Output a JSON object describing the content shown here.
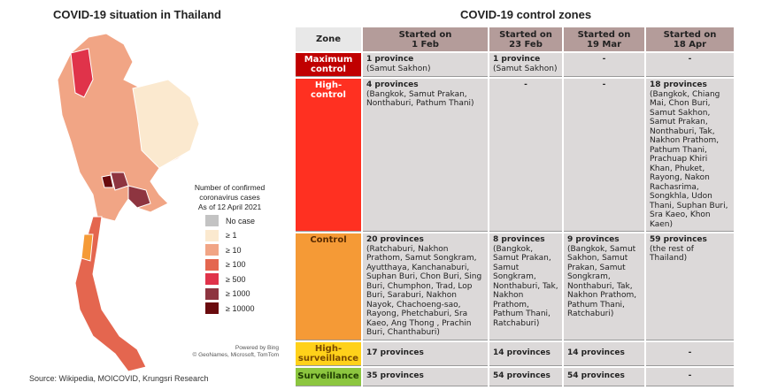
{
  "map": {
    "title": "COVID-19 situation in Thailand",
    "legend_title": [
      "Number of confirmed",
      "coronavirus cases",
      "As of 12 April 2021"
    ],
    "legend": [
      {
        "label": "No case",
        "color": "#c3c3c3"
      },
      {
        "label": "≥ 1",
        "color": "#fbe9cf"
      },
      {
        "label": "≥ 10",
        "color": "#f1a585"
      },
      {
        "label": "≥ 100",
        "color": "#e4664f"
      },
      {
        "label": "≥ 500",
        "color": "#e0334a"
      },
      {
        "label": "≥ 1000",
        "color": "#8e3540"
      },
      {
        "label": "≥ 10000",
        "color": "#6a0b0e"
      }
    ],
    "credit1": "Powered by Bing",
    "credit2": "© GeoNames, Microsoft, TomTom"
  },
  "source": "Source: Wikipedia, MOICOVID, Krungsri Research",
  "table": {
    "title": "COVID-19 control zones",
    "headers": [
      "Zone",
      "Started on\n1 Feb",
      "Started on\n23 Feb",
      "Started on\n19 Mar",
      "Started on\n18 Apr"
    ],
    "rows": [
      {
        "zone": "Maximum control",
        "color": "#c00000",
        "cells": [
          {
            "count": "1 province",
            "list": "(Samut Sakhon)"
          },
          {
            "count": "1 province",
            "list": "(Samut Sakhon)"
          },
          {
            "count": "-",
            "list": ""
          },
          {
            "count": "-",
            "list": ""
          }
        ]
      },
      {
        "zone": "High-control",
        "color": "#ff3021",
        "cells": [
          {
            "count": "4 provinces",
            "list": "(Bangkok, Samut Prakan, Nonthaburi, Pathum Thani)"
          },
          {
            "count": "-",
            "list": ""
          },
          {
            "count": "-",
            "list": ""
          },
          {
            "count": "18 provinces",
            "list": "(Bangkok, Chiang Mai, Chon Buri, Samut Sakhon, Samut Prakan, Nonthaburi, Tak, Nakhon Prathom, Pathum Thani, Prachuap Khiri Khan, Phuket, Rayong, Nakon Rachasrima, Songkhla, Udon Thani, Suphan Buri, Sra Kaeo, Khon Kaen)"
          }
        ]
      },
      {
        "zone": "Control",
        "color": "#f59a36",
        "cells": [
          {
            "count": "20 provinces",
            "list": "(Ratchaburi, Nakhon Prathom, Samut Songkram, Ayutthaya, Kanchanaburi, Suphan Buri, Chon Buri, Sing Buri, Chumphon, Trad, Lop Buri, Saraburi, Nakhon Nayok, Chachoeng-sao, Rayong,  Phetchaburi, Sra Kaeo, Ang Thong , Prachin Buri, Chanthaburi)"
          },
          {
            "count": "8 provinces",
            "list": "(Bangkok, Samut Prakan, Samut Songkram, Nonthaburi, Tak, Nakhon Prathom, Pathum Thani, Ratchaburi)"
          },
          {
            "count": "9 provinces",
            "list": "(Bangkok, Samut Sakhon, Samut Prakan, Samut Songkram, Nonthaburi, Tak, Nakhon Prathom, Pathum Thani, Ratchaburi)"
          },
          {
            "count": "59 provinces",
            "list": "(the rest of Thailand)"
          }
        ]
      },
      {
        "zone": "High-surveillance",
        "color": "#ffd11a",
        "cells": [
          {
            "count": "17 provinces",
            "list": ""
          },
          {
            "count": "14 provinces",
            "list": ""
          },
          {
            "count": "14 provinces",
            "list": ""
          },
          {
            "count": "-",
            "list": ""
          }
        ]
      },
      {
        "zone": "Surveillance",
        "color": "#8cc63f",
        "cells": [
          {
            "count": "35 provinces",
            "list": ""
          },
          {
            "count": "54 provinces",
            "list": ""
          },
          {
            "count": "54 provinces",
            "list": ""
          },
          {
            "count": "-",
            "list": ""
          }
        ]
      }
    ]
  }
}
